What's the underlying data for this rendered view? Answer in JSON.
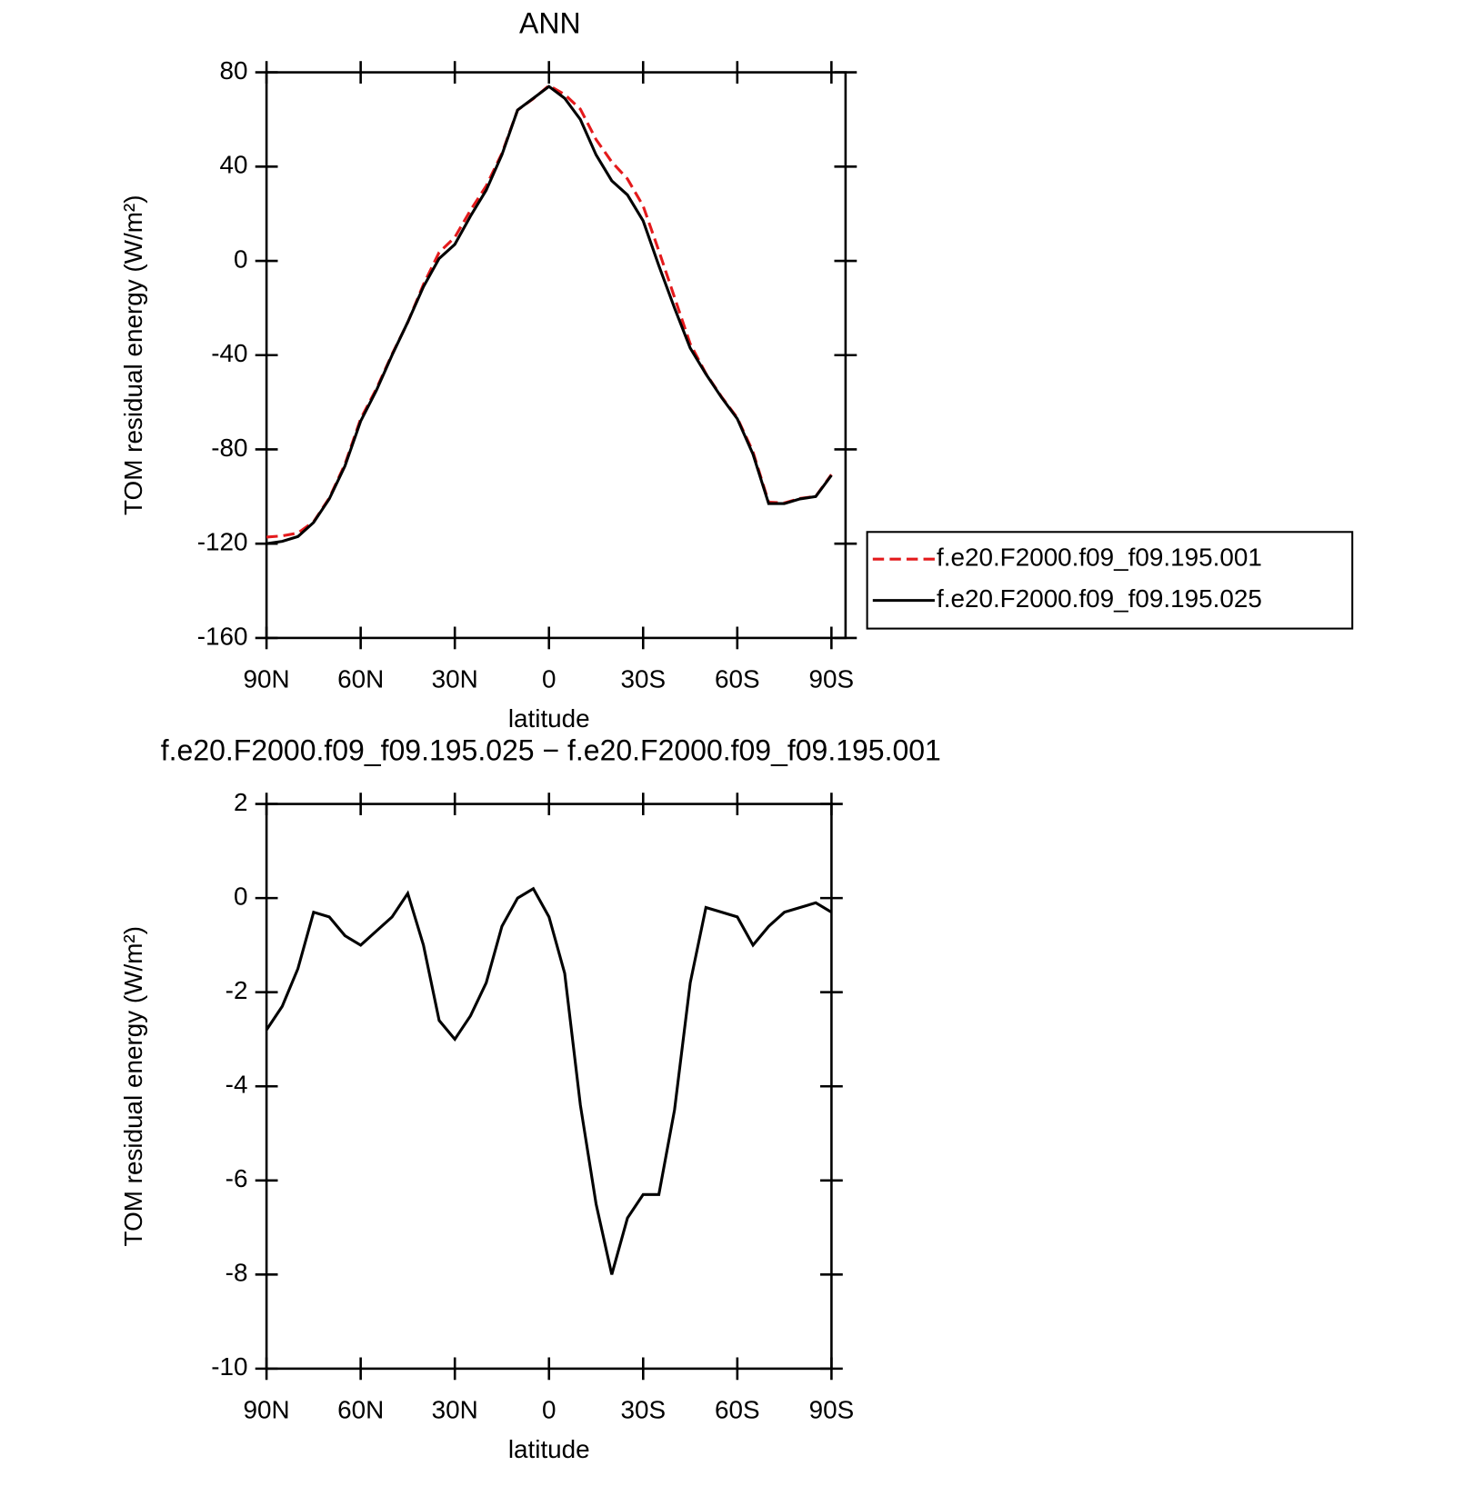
{
  "chart_data": [
    {
      "type": "line",
      "title": "ANN",
      "xlabel": "latitude",
      "ylabel": "TOM residual energy (W/m²)",
      "x": [
        90,
        85,
        80,
        75,
        70,
        65,
        60,
        55,
        50,
        45,
        40,
        35,
        30,
        25,
        20,
        15,
        10,
        5,
        0,
        -5,
        -10,
        -15,
        -20,
        -25,
        -30,
        -35,
        -40,
        -45,
        -50,
        -55,
        -60,
        -65,
        -70,
        -75,
        -80,
        -85,
        -90
      ],
      "series": [
        {
          "name": "f.e20.F2000.f09_f09.195.001",
          "color": "#e41a1c",
          "line_style": "dashed",
          "values": [
            -117.2,
            -116.7,
            -115.5,
            -110.7,
            -100.6,
            -86.2,
            -67,
            -54.3,
            -39.6,
            -26.1,
            -10,
            3.6,
            10,
            21.5,
            31.8,
            45.6,
            64,
            68.8,
            74.4,
            70.6,
            64.4,
            51.5,
            42,
            34.8,
            23.3,
            4.3,
            -15.5,
            -35.2,
            -47.8,
            -57.7,
            -66.6,
            -81,
            -102.4,
            -102.7,
            -100.8,
            -99.9,
            -90.7
          ]
        },
        {
          "name": "f.e20.F2000.f09_f09.195.025",
          "color": "#000000",
          "line_style": "solid",
          "values": [
            -120,
            -119,
            -117,
            -111,
            -101,
            -87,
            -68,
            -55,
            -40,
            -26,
            -11,
            1,
            7,
            19,
            30,
            45,
            64,
            69,
            74,
            69,
            60,
            45,
            34,
            28,
            17,
            -2,
            -20,
            -37,
            -48,
            -58,
            -67,
            -82,
            -103,
            -103,
            -101,
            -100,
            -91
          ]
        }
      ],
      "xlim": [
        90,
        -94.5
      ],
      "xticks": [
        {
          "value": 90,
          "label": "90N"
        },
        {
          "value": 60,
          "label": "60N"
        },
        {
          "value": 30,
          "label": "30N"
        },
        0,
        {
          "value": -30,
          "label": "30S"
        },
        {
          "value": -60,
          "label": "60S"
        },
        {
          "value": -90,
          "label": "90S"
        }
      ],
      "ylim": [
        -160,
        80
      ],
      "yticks": [
        -160,
        -120,
        -80,
        -40,
        0,
        40,
        80
      ],
      "legend": "right"
    },
    {
      "type": "line",
      "title": "f.e20.F2000.f09_f09.195.025 − f.e20.F2000.f09_f09.195.001",
      "xlabel": "latitude",
      "ylabel": "TOM residual energy (W/m²)",
      "x": [
        90,
        85,
        80,
        75,
        70,
        65,
        60,
        55,
        50,
        45,
        40,
        35,
        30,
        25,
        20,
        15,
        10,
        5,
        0,
        -5,
        -10,
        -15,
        -20,
        -25,
        -30,
        -35,
        -40,
        -45,
        -50,
        -55,
        -60,
        -65,
        -70,
        -75,
        -80,
        -85,
        -90
      ],
      "series": [
        {
          "color": "#000000",
          "line_style": "solid",
          "values": [
            -2.8,
            -2.3,
            -1.5,
            -0.3,
            -0.4,
            -0.8,
            -1.0,
            -0.7,
            -0.4,
            0.1,
            -1.0,
            -2.6,
            -3.0,
            -2.5,
            -1.8,
            -0.6,
            0.0,
            0.2,
            -0.4,
            -1.6,
            -4.4,
            -6.5,
            -8.0,
            -6.8,
            -6.3,
            -6.3,
            -4.5,
            -1.8,
            -0.2,
            -0.3,
            -0.4,
            -1.0,
            -0.6,
            -0.3,
            -0.2,
            -0.1,
            -0.3
          ]
        }
      ],
      "xlim": [
        90,
        -90
      ],
      "xticks": [
        {
          "value": 90,
          "label": "90N"
        },
        {
          "value": 60,
          "label": "60N"
        },
        {
          "value": 30,
          "label": "30N"
        },
        0,
        {
          "value": -30,
          "label": "30S"
        },
        {
          "value": -60,
          "label": "60S"
        },
        {
          "value": -90,
          "label": "90S"
        }
      ],
      "ylim": [
        -10,
        2
      ],
      "yticks": [
        -10,
        -8,
        -6,
        -4,
        -2,
        0,
        2
      ]
    }
  ]
}
